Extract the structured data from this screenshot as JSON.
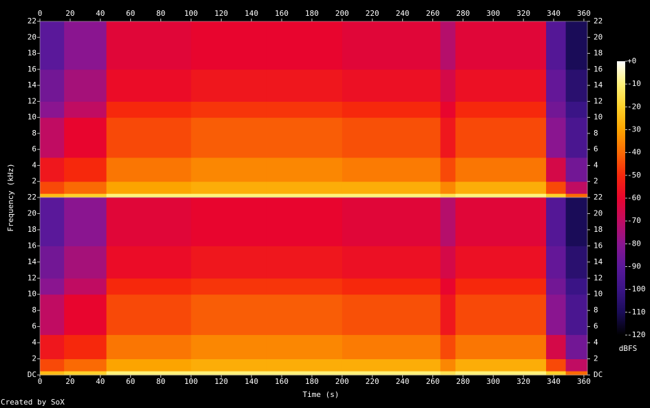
{
  "chart_data": {
    "type": "heatmap",
    "x_label": "Time (s)",
    "y_label": "Frequency (kHz)",
    "credit": "Created by SoX",
    "xlim": [
      0,
      362.3
    ],
    "xticks": [
      0,
      20,
      40,
      60,
      80,
      100,
      120,
      140,
      160,
      180,
      200,
      220,
      240,
      260,
      280,
      300,
      320,
      340,
      360
    ],
    "x_edges": [
      0,
      16,
      44,
      100,
      150,
      200,
      265,
      275,
      335,
      348,
      362.3
    ],
    "y_edges": [
      0,
      0.5,
      2,
      5,
      10,
      12,
      16,
      22
    ],
    "panels": [
      {
        "ylim": [
          0,
          22
        ],
        "yticks": [
          2,
          4,
          6,
          8,
          10,
          12,
          14,
          16,
          18,
          20,
          22
        ],
        "z": [
          [
            -25,
            -20,
            -10,
            -10,
            -10,
            -10,
            -15,
            -10,
            -20,
            -40
          ],
          [
            -45,
            -40,
            -30,
            -28,
            -28,
            -28,
            -35,
            -28,
            -45,
            -70
          ],
          [
            -55,
            -50,
            -38,
            -35,
            -35,
            -37,
            -45,
            -38,
            -65,
            -85
          ],
          [
            -70,
            -60,
            -45,
            -42,
            -42,
            -44,
            -55,
            -45,
            -80,
            -95
          ],
          [
            -80,
            -70,
            -50,
            -48,
            -48,
            -50,
            -60,
            -50,
            -85,
            -100
          ],
          [
            -85,
            -75,
            -58,
            -55,
            -55,
            -57,
            -65,
            -57,
            -88,
            -105
          ],
          [
            -90,
            -80,
            -62,
            -60,
            -60,
            -62,
            -72,
            -62,
            -92,
            -110
          ]
        ]
      },
      {
        "ylim": [
          0,
          22
        ],
        "yticks": [
          {
            "value": 0,
            "label": "DC"
          },
          2,
          4,
          6,
          8,
          10,
          12,
          14,
          16,
          18,
          20,
          22
        ],
        "z": [
          [
            -25,
            -20,
            -10,
            -10,
            -10,
            -10,
            -15,
            -10,
            -20,
            -40
          ],
          [
            -45,
            -40,
            -30,
            -28,
            -28,
            -28,
            -35,
            -28,
            -45,
            -70
          ],
          [
            -55,
            -50,
            -38,
            -35,
            -35,
            -37,
            -45,
            -38,
            -65,
            -85
          ],
          [
            -70,
            -60,
            -45,
            -42,
            -42,
            -44,
            -55,
            -45,
            -80,
            -95
          ],
          [
            -80,
            -70,
            -50,
            -48,
            -48,
            -50,
            -60,
            -50,
            -85,
            -100
          ],
          [
            -85,
            -75,
            -58,
            -55,
            -55,
            -57,
            -65,
            -57,
            -88,
            -105
          ],
          [
            -90,
            -80,
            -62,
            -60,
            -60,
            -62,
            -72,
            -62,
            -92,
            -110
          ]
        ]
      }
    ],
    "colorbar": {
      "label": "dBFS",
      "zlim": [
        -120,
        0
      ],
      "ticks": [
        {
          "value": 0,
          "label": "+0"
        },
        -10,
        -20,
        -30,
        -40,
        -50,
        -60,
        -70,
        -80,
        -90,
        -100,
        -110,
        -120
      ],
      "colors": [
        "#000000",
        "#1a0c58",
        "#3a1486",
        "#5a189a",
        "#8a1590",
        "#c00c62",
        "#e8052e",
        "#f6280c",
        "#fa6a04",
        "#fca400",
        "#fdd12a",
        "#fff27a",
        "#ffffff"
      ]
    }
  }
}
